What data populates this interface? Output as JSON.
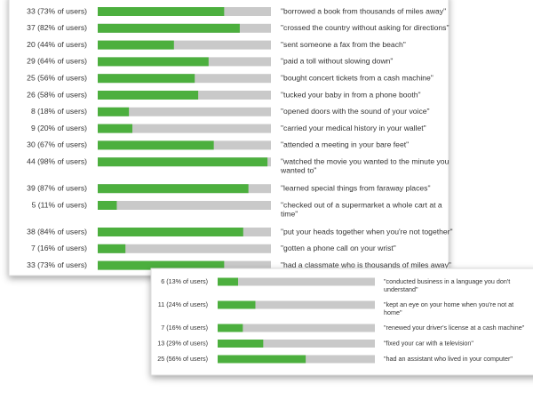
{
  "panels": [
    {
      "rows": [
        {
          "label": "33 (73% of users)",
          "value": 73,
          "quote": [
            "\"borrowed a book from thousands of miles away\""
          ]
        },
        {
          "label": "37 (82% of users)",
          "value": 82,
          "quote": [
            "\"crossed the country without asking for directions\""
          ]
        },
        {
          "label": "20 (44% of users)",
          "value": 44,
          "quote": [
            "\"sent someone a fax from the beach\""
          ]
        },
        {
          "label": "29 (64% of users)",
          "value": 64,
          "quote": [
            "\"paid a toll without slowing down\""
          ]
        },
        {
          "label": "25 (56% of users)",
          "value": 56,
          "quote": [
            "\"bought concert tickets from a cash machine\""
          ]
        },
        {
          "label": "26 (58% of users)",
          "value": 58,
          "quote": [
            "\"tucked your baby in from a phone booth\""
          ]
        },
        {
          "label": "8 (18% of users)",
          "value": 18,
          "quote": [
            "\"opened doors with the sound of your voice\""
          ]
        },
        {
          "label": "9 (20% of users)",
          "value": 20,
          "quote": [
            "\"carried your medical history in your wallet\""
          ]
        },
        {
          "label": "30 (67% of users)",
          "value": 67,
          "quote": [
            "\"attended a meeting in your bare feet\""
          ]
        },
        {
          "label": "44 (98% of users)",
          "value": 98,
          "quote": [
            "\"watched the movie you wanted to the minute you",
            "wanted to\""
          ]
        },
        {
          "label": "39 (87% of users)",
          "value": 87,
          "quote": [
            "\"learned special things from faraway places\""
          ]
        },
        {
          "label": "5 (11% of users)",
          "value": 11,
          "quote": [
            "\"checked out of a supermarket a whole cart at a",
            "time\""
          ]
        },
        {
          "label": "38 (84% of users)",
          "value": 84,
          "quote": [
            "\"put your heads together when you're not together\""
          ]
        },
        {
          "label": "7 (16% of users)",
          "value": 16,
          "quote": [
            "\"gotten a phone call on your wrist\""
          ]
        },
        {
          "label": "33 (73% of users)",
          "value": 73,
          "quote": [
            "\"had a classmate who is thousands of miles away\""
          ]
        }
      ]
    },
    {
      "rows": [
        {
          "label": "6 (13% of users)",
          "value": 13,
          "quote": [
            "\"conducted business in a language you don't",
            "understand\""
          ]
        },
        {
          "label": "11 (24% of users)",
          "value": 24,
          "quote": [
            "\"kept an eye on your home when you're not at",
            "home\""
          ]
        },
        {
          "label": "7 (16% of users)",
          "value": 16,
          "quote": [
            "\"renewed your driver's license at a cash machine\""
          ]
        },
        {
          "label": "13 (29% of users)",
          "value": 29,
          "quote": [
            "\"fixed your car with a television\""
          ]
        },
        {
          "label": "25 (56% of users)",
          "value": 56,
          "quote": [
            "\"had an assistant who lived in your computer\""
          ]
        }
      ]
    }
  ]
}
